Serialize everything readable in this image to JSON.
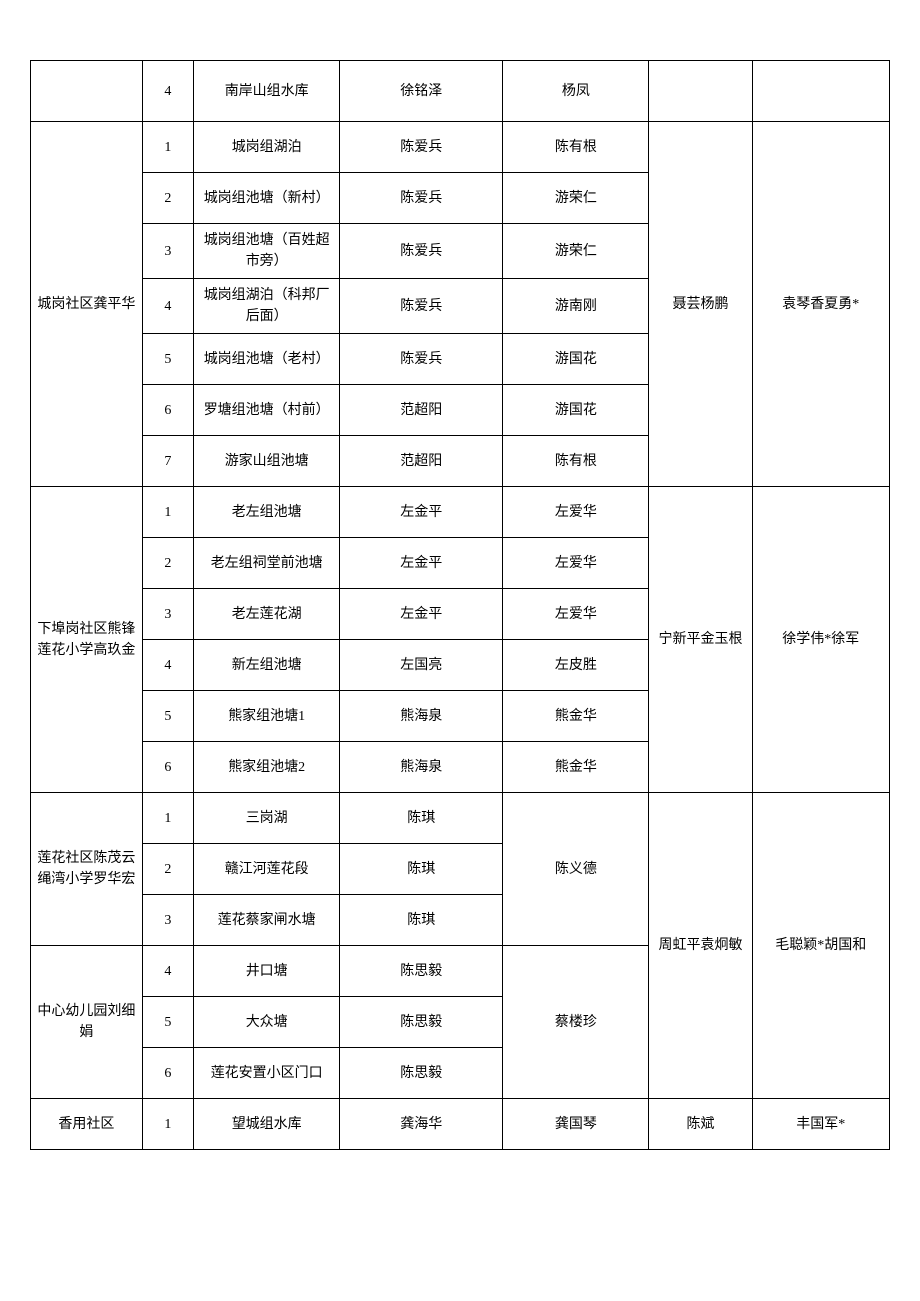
{
  "table": {
    "columns": [
      "c0",
      "c1",
      "c2",
      "c3",
      "c4",
      "c5",
      "c6"
    ],
    "rows": [
      {
        "cells": [
          {
            "t": "",
            "rs": 1
          },
          {
            "t": "4"
          },
          {
            "t": "南岸山组水库"
          },
          {
            "t": "徐铭泽"
          },
          {
            "t": "杨凤"
          },
          {
            "t": ""
          },
          {
            "t": ""
          }
        ],
        "tall": true
      },
      {
        "cells": [
          {
            "t": "城岗社区龚平华",
            "rs": 7
          },
          {
            "t": "1"
          },
          {
            "t": "城岗组湖泊"
          },
          {
            "t": "陈爱兵"
          },
          {
            "t": "陈有根"
          },
          {
            "t": "聂芸杨鹏",
            "rs": 7
          },
          {
            "t": "袁琴香夏勇*",
            "rs": 7
          }
        ]
      },
      {
        "cells": [
          {
            "t": "2"
          },
          {
            "t": "城岗组池塘（新村）"
          },
          {
            "t": "陈爱兵"
          },
          {
            "t": "游荣仁"
          }
        ]
      },
      {
        "cells": [
          {
            "t": "3"
          },
          {
            "t": "城岗组池塘（百姓超市旁）"
          },
          {
            "t": "陈爱兵"
          },
          {
            "t": "游荣仁"
          }
        ]
      },
      {
        "cells": [
          {
            "t": "4"
          },
          {
            "t": "城岗组湖泊（科邦厂后面）"
          },
          {
            "t": "陈爱兵"
          },
          {
            "t": "游南刚"
          }
        ]
      },
      {
        "cells": [
          {
            "t": "5"
          },
          {
            "t": "城岗组池塘（老村）"
          },
          {
            "t": "陈爱兵"
          },
          {
            "t": "游国花"
          }
        ]
      },
      {
        "cells": [
          {
            "t": "6"
          },
          {
            "t": "罗塘组池塘（村前）"
          },
          {
            "t": "范超阳"
          },
          {
            "t": "游国花"
          }
        ]
      },
      {
        "cells": [
          {
            "t": "7"
          },
          {
            "t": "游家山组池塘"
          },
          {
            "t": "范超阳"
          },
          {
            "t": "陈有根"
          }
        ]
      },
      {
        "cells": [
          {
            "t": "下埠岗社区熊锋莲花小学高玖金",
            "rs": 6
          },
          {
            "t": "1"
          },
          {
            "t": "老左组池塘"
          },
          {
            "t": "左金平"
          },
          {
            "t": "左爱华"
          },
          {
            "t": "宁新平金玉根",
            "rs": 6
          },
          {
            "t": "徐学伟*徐军",
            "rs": 6
          }
        ]
      },
      {
        "cells": [
          {
            "t": "2"
          },
          {
            "t": "老左组祠堂前池塘"
          },
          {
            "t": "左金平"
          },
          {
            "t": "左爱华"
          }
        ]
      },
      {
        "cells": [
          {
            "t": "3"
          },
          {
            "t": "老左莲花湖"
          },
          {
            "t": "左金平"
          },
          {
            "t": "左爱华"
          }
        ]
      },
      {
        "cells": [
          {
            "t": "4"
          },
          {
            "t": "新左组池塘"
          },
          {
            "t": "左国亮"
          },
          {
            "t": "左皮胜"
          }
        ]
      },
      {
        "cells": [
          {
            "t": "5"
          },
          {
            "t": "熊家组池塘1"
          },
          {
            "t": "熊海泉"
          },
          {
            "t": "熊金华"
          }
        ]
      },
      {
        "cells": [
          {
            "t": "6"
          },
          {
            "t": "熊家组池塘2"
          },
          {
            "t": "熊海泉"
          },
          {
            "t": "熊金华"
          }
        ]
      },
      {
        "cells": [
          {
            "t": "莲花社区陈茂云绳湾小学罗华宏",
            "rs": 3
          },
          {
            "t": "1"
          },
          {
            "t": "三岗湖"
          },
          {
            "t": "陈琪"
          },
          {
            "t": "陈义德",
            "rs": 3
          },
          {
            "t": "周虹平袁炯敏",
            "rs": 6
          },
          {
            "t": "毛聪颖*胡国和",
            "rs": 6
          }
        ],
        "short": true
      },
      {
        "cells": [
          {
            "t": "2"
          },
          {
            "t": "赣江河莲花段"
          },
          {
            "t": "陈琪"
          }
        ],
        "short": true
      },
      {
        "cells": [
          {
            "t": "3"
          },
          {
            "t": "莲花蔡家闸水塘"
          },
          {
            "t": "陈琪"
          }
        ],
        "short": true
      },
      {
        "cells": [
          {
            "t": "中心幼儿园刘细娟",
            "rs": 3
          },
          {
            "t": "4"
          },
          {
            "t": "井口塘"
          },
          {
            "t": "陈思毅"
          },
          {
            "t": "蔡楼珍",
            "rs": 3
          }
        ],
        "short": true
      },
      {
        "cells": [
          {
            "t": "5"
          },
          {
            "t": "大众塘"
          },
          {
            "t": "陈思毅"
          }
        ],
        "short": true
      },
      {
        "cells": [
          {
            "t": "6"
          },
          {
            "t": "莲花安置小区门口"
          },
          {
            "t": "陈思毅"
          }
        ]
      },
      {
        "cells": [
          {
            "t": "香用社区"
          },
          {
            "t": "1"
          },
          {
            "t": "望城组水库"
          },
          {
            "t": "龚海华"
          },
          {
            "t": "龚国琴"
          },
          {
            "t": "陈斌"
          },
          {
            "t": "丰国军*"
          }
        ],
        "short": true
      }
    ]
  }
}
